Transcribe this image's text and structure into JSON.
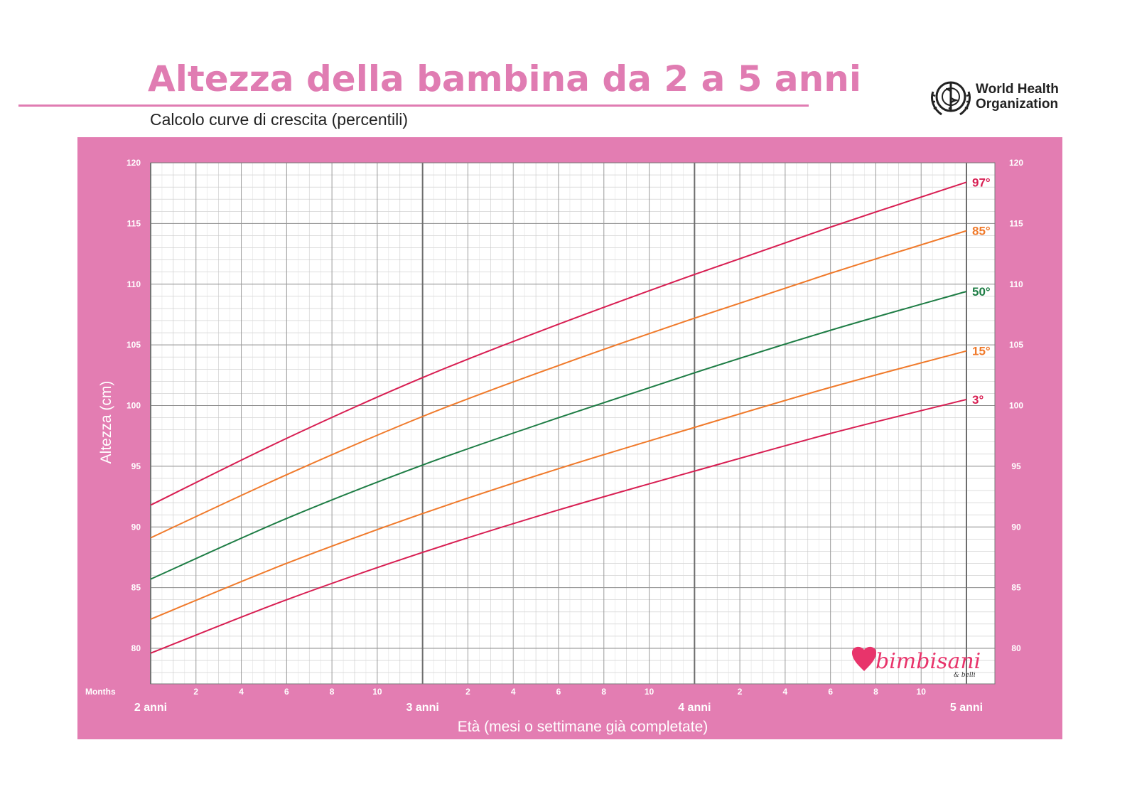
{
  "header": {
    "title": "Altezza della bambina da 2 a 5 anni",
    "subtitle": "Calcolo curve di crescita (percentili)",
    "logo_line1": "World Health",
    "logo_line2": "Organization",
    "logo_icon": "who-emblem-icon"
  },
  "brand": {
    "name": "bimbisani",
    "tagline": "& belli",
    "icon": "heart-icon"
  },
  "colors": {
    "panel": "#e37db2",
    "title": "#e07cb2",
    "p3": "#d81e52",
    "p15": "#f07a2b",
    "p50": "#1e7d45",
    "p85": "#f07a2b",
    "p97": "#d81e52"
  },
  "chart_data": {
    "type": "line",
    "ylabel": "Altezza (cm)",
    "xlabel": "Età (mesi o settimane già completate)",
    "months_label": "Months",
    "xlim": [
      24,
      60
    ],
    "ylim": [
      77,
      120
    ],
    "yticks": [
      80,
      85,
      90,
      95,
      100,
      105,
      110,
      115,
      120
    ],
    "x_month_ticks": [
      "2",
      "4",
      "6",
      "8",
      "10"
    ],
    "x_major_labels": [
      "2 anni",
      "3 anni",
      "4 anni",
      "5 anni"
    ],
    "grid": true,
    "x": [
      24,
      30,
      36,
      42,
      48,
      54,
      60
    ],
    "series": [
      {
        "name": "97°",
        "values": [
          91.8,
          97.3,
          102.3,
          106.7,
          110.8,
          114.7,
          118.4
        ]
      },
      {
        "name": "85°",
        "values": [
          89.1,
          94.3,
          99.1,
          103.3,
          107.2,
          110.9,
          114.4
        ]
      },
      {
        "name": "50°",
        "values": [
          85.7,
          90.7,
          95.1,
          99.0,
          102.7,
          106.2,
          109.4
        ]
      },
      {
        "name": "15°",
        "values": [
          82.4,
          87.0,
          91.1,
          94.8,
          98.2,
          101.5,
          104.5
        ]
      },
      {
        "name": "3°",
        "values": [
          79.6,
          84.0,
          87.9,
          91.4,
          94.6,
          97.7,
          100.5
        ]
      }
    ]
  }
}
